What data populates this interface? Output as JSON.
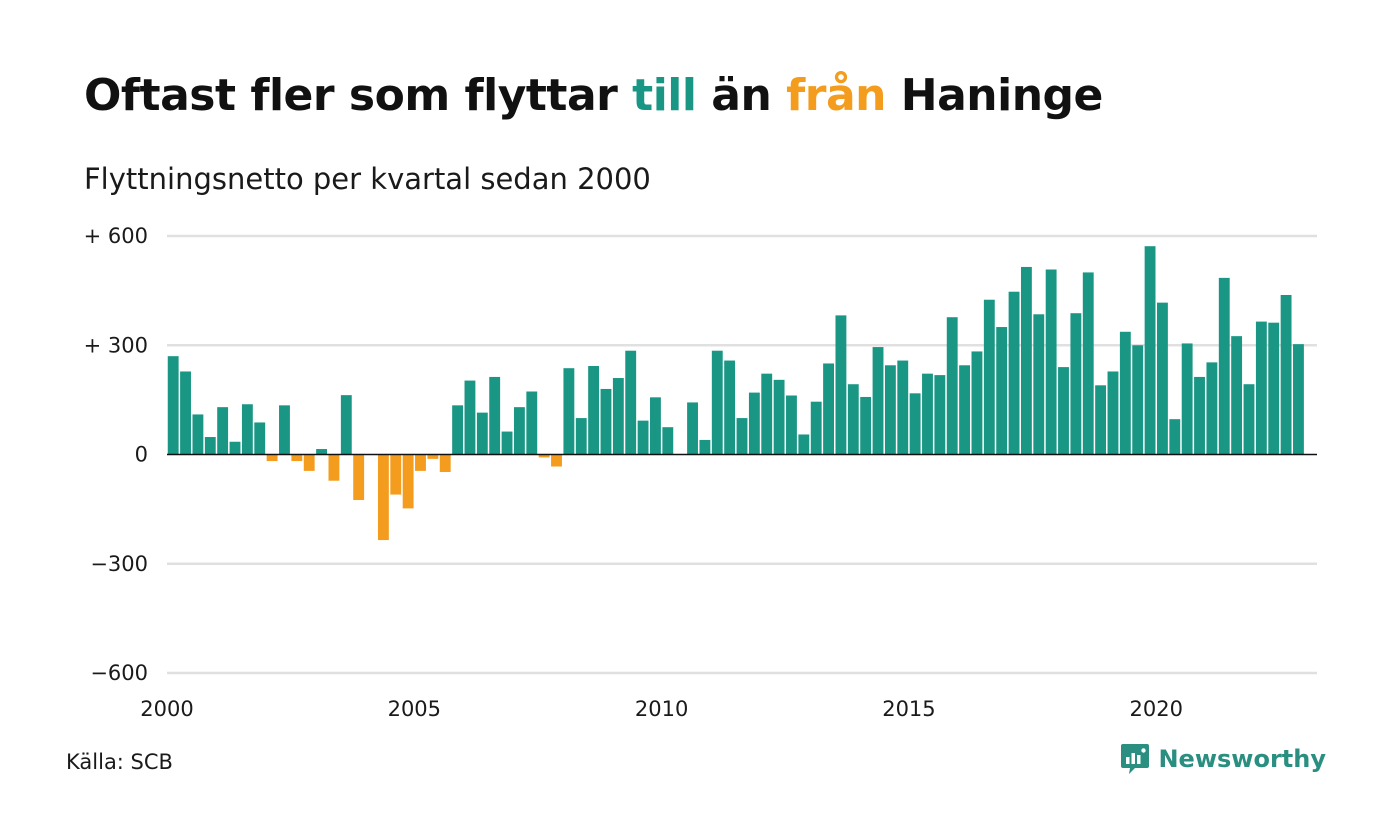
{
  "title": {
    "part1": "Oftast fler som flyttar ",
    "word_to": "till",
    "part2": " än ",
    "word_from": "från",
    "part3": " Haninge"
  },
  "subtitle": "Flyttningsnetto per kvartal sedan 2000",
  "source": "Källa: SCB",
  "brand": {
    "name": "Newsworthy",
    "icon": "newsworthy-logo-icon"
  },
  "colors": {
    "positive": "#1a9685",
    "negative": "#f39c1e",
    "grid": "#e0e0e0",
    "zero_line": "#111111",
    "brand": "#2a8f80"
  },
  "chart_data": {
    "type": "bar",
    "title": "Oftast fler som flyttar till än från Haninge",
    "subtitle": "Flyttningsnetto per kvartal sedan 2000",
    "xlabel": "",
    "ylabel": "",
    "ylim": [
      -600,
      600
    ],
    "xlim": [
      2000,
      2023.25
    ],
    "grid": true,
    "x_ticks": [
      {
        "value": 2000,
        "label": "2000"
      },
      {
        "value": 2005,
        "label": "2005"
      },
      {
        "value": 2010,
        "label": "2010"
      },
      {
        "value": 2015,
        "label": "2015"
      },
      {
        "value": 2020,
        "label": "2020"
      }
    ],
    "y_ticks": [
      {
        "value": 600,
        "label": "+ 600"
      },
      {
        "value": 300,
        "label": "+ 300"
      },
      {
        "value": 0,
        "label": "0"
      },
      {
        "value": -300,
        "label": "−300"
      },
      {
        "value": -600,
        "label": "−600"
      }
    ],
    "start_year": 2000,
    "values": [
      270,
      228,
      110,
      48,
      130,
      35,
      138,
      88,
      -18,
      135,
      -18,
      -45,
      15,
      -72,
      163,
      -125,
      0,
      -235,
      -110,
      -148,
      -45,
      -12,
      -48,
      135,
      203,
      115,
      213,
      63,
      130,
      173,
      -8,
      -33,
      237,
      100,
      243,
      180,
      210,
      285,
      93,
      157,
      75,
      0,
      143,
      40,
      285,
      258,
      100,
      170,
      222,
      205,
      162,
      55,
      145,
      250,
      382,
      193,
      158,
      295,
      245,
      258,
      168,
      222,
      218,
      377,
      245,
      283,
      425,
      350,
      447,
      515,
      385,
      508,
      240,
      388,
      500,
      190,
      228,
      337,
      300,
      572,
      417,
      97,
      305,
      213,
      253,
      485,
      325,
      193,
      365,
      362,
      438,
      303
    ]
  }
}
